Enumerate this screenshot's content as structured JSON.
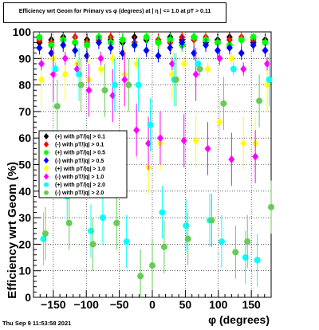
{
  "title": "Efficiency wrt Geom for Primary vs φ (degrees) at |  η | <= 1.0 at pT > 0.11",
  "timestamp": "Thu Sep  9 11:53:58 2021",
  "chart_data": {
    "type": "scatter",
    "title": "Efficiency wrt Geom for Primary vs φ (degrees) at |  η | <= 1.0 at pT > 0.11",
    "xlabel": "φ (degrees)",
    "ylabel": "Efficiency wrt Geom (%)",
    "xlim": [
      -180,
      180
    ],
    "ylim": [
      0,
      100
    ],
    "xticks": [
      -150,
      -100,
      -50,
      0,
      50,
      100,
      150
    ],
    "xtick_labels": [
      "−150",
      "−100",
      "−50",
      "0",
      "50",
      "100",
      "150"
    ],
    "yticks": [
      0,
      10,
      20,
      30,
      40,
      50,
      60,
      70,
      80,
      90,
      100
    ],
    "grid": true,
    "legend_position": "center-left",
    "series": [
      {
        "name": "(+) with pT/|q| > 0.1",
        "color": "#000000",
        "marker": "diamond",
        "x": [
          -171,
          -153,
          -135,
          -117,
          -99,
          -81,
          -63,
          -45,
          -27,
          -9,
          9,
          27,
          45,
          63,
          81,
          99,
          117,
          135,
          153,
          171
        ],
        "y": [
          96,
          97,
          98,
          96,
          97,
          98,
          97,
          96,
          98,
          97,
          96,
          98,
          97,
          98,
          96,
          97,
          98,
          97,
          96,
          97
        ]
      },
      {
        "name": "(-) with pT/|q| > 0.1",
        "color": "#ff0000",
        "marker": "diamond",
        "x": [
          -171,
          -153,
          -135,
          -117,
          -99,
          -81,
          -63,
          -45,
          -27,
          -9,
          9,
          27,
          45,
          63,
          81,
          99,
          117,
          135,
          153,
          171
        ],
        "y": [
          97,
          96,
          97,
          98,
          96,
          97,
          98,
          97,
          96,
          98,
          97,
          96,
          98,
          97,
          98,
          96,
          97,
          98,
          97,
          96
        ]
      },
      {
        "name": "(+) with pT/|q| > 0.5",
        "color": "#00ff00",
        "marker": "circle",
        "x": [
          -171,
          -153,
          -135,
          -117,
          -99,
          -81,
          -63,
          -45,
          -27,
          -9,
          9,
          27,
          45,
          63,
          81,
          99,
          117,
          135,
          153,
          171
        ],
        "y": [
          98,
          95,
          97,
          96,
          95,
          98,
          96,
          97,
          95,
          98,
          96,
          97,
          95,
          98,
          97,
          96,
          95,
          97,
          98,
          96
        ]
      },
      {
        "name": "(-) with pT/|q| > 0.5",
        "color": "#0000ff",
        "marker": "diamond",
        "x": [
          -171,
          -153,
          -135,
          -117,
          -99,
          -81,
          -63,
          -45,
          -27,
          -9,
          9,
          27,
          45,
          63,
          81,
          99,
          117,
          135,
          153,
          171
        ],
        "y": [
          94,
          92,
          95,
          93,
          91,
          96,
          94,
          92,
          95,
          93,
          91,
          94,
          96,
          92,
          95,
          93,
          94,
          92,
          95,
          93
        ]
      },
      {
        "name": "(+) with pT/|q| > 1.0",
        "color": "#ffff00",
        "marker": "diamond",
        "x": [
          -168,
          -150,
          -132,
          -114,
          -96,
          -78,
          -60,
          -42,
          -24,
          -6,
          12,
          30,
          48,
          66,
          84,
          102,
          120,
          138,
          156,
          174
        ],
        "y": [
          82,
          90,
          84,
          88,
          82,
          86,
          90,
          84,
          88,
          49,
          58,
          84,
          88,
          59,
          86,
          66,
          90,
          58,
          58,
          80
        ]
      },
      {
        "name": "(-) with pT/|q| > 1.0",
        "color": "#ff00ff",
        "marker": "diamond",
        "x": [
          -168,
          -150,
          -132,
          -114,
          -96,
          -78,
          -60,
          -42,
          -24,
          -6,
          12,
          30,
          48,
          66,
          84,
          102,
          120,
          138,
          156,
          174
        ],
        "y": [
          88,
          84,
          90,
          86,
          78,
          90,
          76,
          82,
          63,
          58,
          60,
          88,
          59,
          84,
          56,
          90,
          52,
          86,
          53,
          88
        ]
      },
      {
        "name": "(+) with pT/|q| > 2.0",
        "color": "#00ffff",
        "marker": "circle",
        "x": [
          -165,
          -147,
          -129,
          -111,
          -93,
          -75,
          -57,
          -39,
          -21,
          -3,
          15,
          33,
          51,
          69,
          87,
          105,
          123,
          141,
          159,
          177
        ],
        "y": [
          22,
          86,
          38,
          84,
          25,
          30,
          80,
          21,
          80,
          65,
          32,
          82,
          27,
          88,
          29,
          21,
          86,
          15,
          14,
          82
        ]
      },
      {
        "name": "(-) with pT/|q| > 2.0",
        "color": "#66cc55",
        "marker": "circle",
        "x": [
          -162,
          -144,
          -126,
          -108,
          -90,
          -72,
          -54,
          -36,
          -18,
          0,
          18,
          36,
          54,
          72,
          90,
          108,
          126,
          144,
          162,
          180
        ],
        "y": [
          24,
          72,
          28,
          80,
          20,
          78,
          28,
          80,
          8,
          12,
          19,
          82,
          22,
          86,
          29,
          73,
          17,
          21,
          74,
          34
        ]
      }
    ]
  }
}
